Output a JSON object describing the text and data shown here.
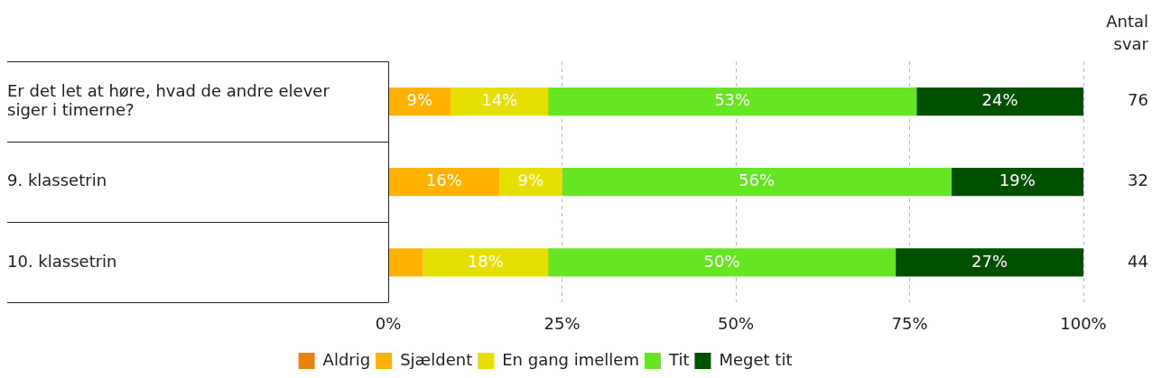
{
  "chart_data": {
    "type": "bar",
    "orientation": "horizontal",
    "stacked": true,
    "categories": [
      "Er det let at høre, hvad de andre elever siger i timerne?",
      "9. klassetrin",
      "10. klassetrin"
    ],
    "series": [
      {
        "name": "Aldrig",
        "color": "#e8830c",
        "values": [
          0,
          0,
          0
        ],
        "value_labels": [
          null,
          null,
          null
        ]
      },
      {
        "name": "Sjældent",
        "color": "#ffb300",
        "values": [
          9,
          16,
          5
        ],
        "value_labels": [
          "9%",
          "16%",
          null
        ]
      },
      {
        "name": "En gang imellem",
        "color": "#e6e000",
        "values": [
          14,
          9,
          18
        ],
        "value_labels": [
          "14%",
          "9%",
          "18%"
        ]
      },
      {
        "name": "Tit",
        "color": "#66e622",
        "values": [
          53,
          56,
          50
        ],
        "value_labels": [
          "53%",
          "56%",
          "50%"
        ]
      },
      {
        "name": "Meget tit",
        "color": "#005000",
        "values": [
          24,
          19,
          27
        ],
        "value_labels": [
          "24%",
          "19%",
          "27%"
        ]
      }
    ],
    "xlim": [
      0,
      100
    ],
    "xticks": [
      {
        "value": 0,
        "label": "0%"
      },
      {
        "value": 25,
        "label": "25%"
      },
      {
        "value": 50,
        "label": "50%"
      },
      {
        "value": 75,
        "label": "75%"
      },
      {
        "value": 100,
        "label": "100%"
      }
    ],
    "grid": "x",
    "legend": "bottom",
    "annotations": [
      "Antal svar",
      "76",
      "32",
      "44"
    ]
  }
}
